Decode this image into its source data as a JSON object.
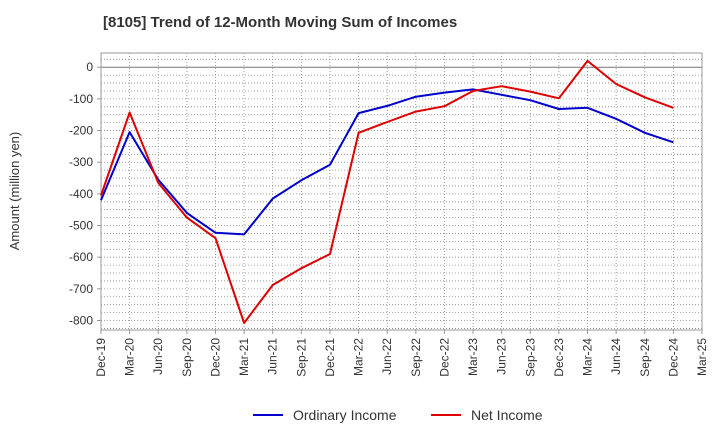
{
  "chart_data": {
    "type": "line",
    "title": "[8105]  Trend of 12-Month Moving Sum of Incomes",
    "xlabel": "",
    "ylabel": "Amount (million yen)",
    "ylim": [
      -830,
      45
    ],
    "yticks": [
      0,
      -100,
      -200,
      -300,
      -400,
      -500,
      -600,
      -700,
      -800
    ],
    "grid": true,
    "legend_position": "bottom-center",
    "categories": [
      "Dec-19",
      "Mar-20",
      "Jun-20",
      "Sep-20",
      "Dec-20",
      "Mar-21",
      "Jun-21",
      "Sep-21",
      "Dec-21",
      "Mar-22",
      "Jun-22",
      "Sep-22",
      "Dec-22",
      "Mar-23",
      "Jun-23",
      "Sep-23",
      "Dec-23",
      "Mar-24",
      "Jun-24",
      "Sep-24",
      "Dec-24",
      "Mar-25"
    ],
    "series": [
      {
        "name": "Ordinary Income",
        "color": "#0000cc",
        "values": [
          -420,
          -205,
          -355,
          -460,
          -523,
          -528,
          -415,
          -357,
          -308,
          -145,
          -122,
          -93,
          -80,
          -70,
          -87,
          -104,
          -132,
          -128,
          -163,
          -207,
          -237,
          null
        ]
      },
      {
        "name": "Net Income",
        "color": "#dd0000",
        "values": [
          -405,
          -143,
          -365,
          -475,
          -540,
          -808,
          -688,
          -635,
          -590,
          -207,
          -173,
          -140,
          -123,
          -75,
          -60,
          -77,
          -98,
          20,
          -53,
          -95,
          -128,
          null
        ]
      }
    ]
  }
}
